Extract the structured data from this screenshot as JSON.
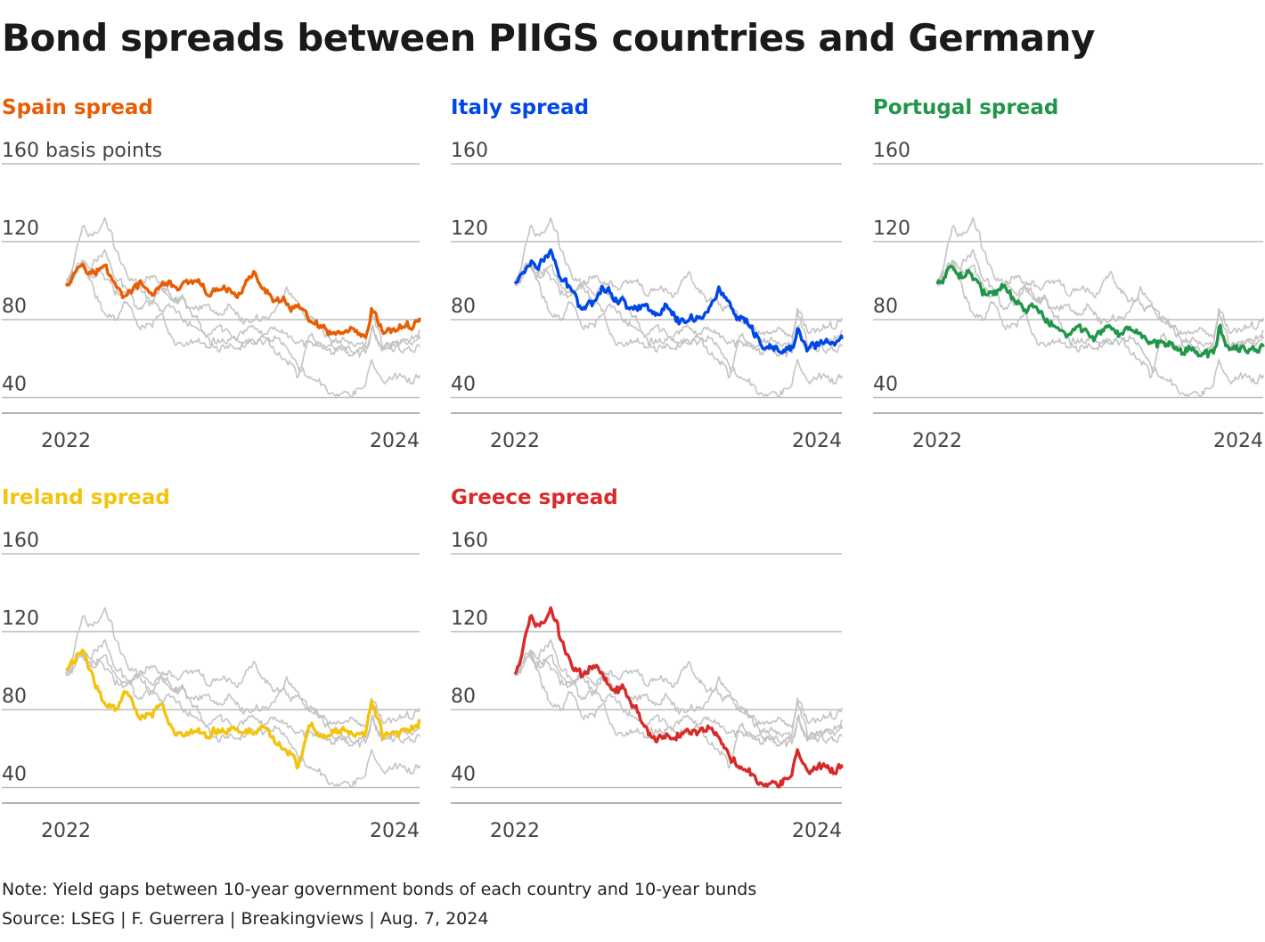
{
  "title": "Bond spreads between PIIGS countries and Germany",
  "note": "Note: Yield gaps between 10-year government bonds of each country and 10-year bunds",
  "source": "Source: LSEG | F. Guerrera | Breakingviews | Aug. 7, 2024",
  "y_unit_label": "basis points",
  "chart_data": {
    "type": "line",
    "layout": "small-multiples",
    "y_ticks": [
      40,
      80,
      120,
      160
    ],
    "ylim": [
      32,
      160
    ],
    "x_ticks": [
      "2022",
      "2024"
    ],
    "xlim": [
      "2022-01-01",
      "2024-08-07"
    ],
    "grid": true,
    "series": [
      {
        "name": "Spain spread",
        "color": "#e85d04",
        "anchors": [
          [
            "2022-01-01",
            99
          ],
          [
            "2022-02-15",
            110
          ],
          [
            "2022-03-15",
            104
          ],
          [
            "2022-04-15",
            107
          ],
          [
            "2022-05-15",
            97
          ],
          [
            "2022-06-15",
            92
          ],
          [
            "2022-07-15",
            98
          ],
          [
            "2022-08-15",
            93
          ],
          [
            "2022-09-15",
            98
          ],
          [
            "2022-10-15",
            97
          ],
          [
            "2022-11-15",
            97
          ],
          [
            "2022-12-15",
            99
          ],
          [
            "2023-01-15",
            92
          ],
          [
            "2023-02-15",
            95
          ],
          [
            "2023-03-15",
            95
          ],
          [
            "2023-04-15",
            94
          ],
          [
            "2023-05-15",
            103
          ],
          [
            "2023-06-15",
            96
          ],
          [
            "2023-07-15",
            90
          ],
          [
            "2023-08-15",
            87
          ],
          [
            "2023-09-15",
            86
          ],
          [
            "2023-10-15",
            80
          ],
          [
            "2023-11-15",
            75
          ],
          [
            "2023-12-15",
            71
          ],
          [
            "2024-01-15",
            73
          ],
          [
            "2024-02-15",
            72
          ],
          [
            "2024-03-15",
            68
          ],
          [
            "2024-04-01",
            84
          ],
          [
            "2024-05-01",
            73
          ],
          [
            "2024-06-15",
            76
          ],
          [
            "2024-07-15",
            76
          ],
          [
            "2024-08-07",
            81
          ]
        ]
      },
      {
        "name": "Italy spread",
        "color": "#0047e8",
        "anchors": [
          [
            "2022-01-01",
            98
          ],
          [
            "2022-02-15",
            110
          ],
          [
            "2022-03-15",
            108
          ],
          [
            "2022-04-15",
            115
          ],
          [
            "2022-05-15",
            100
          ],
          [
            "2022-06-15",
            95
          ],
          [
            "2022-07-15",
            87
          ],
          [
            "2022-08-15",
            90
          ],
          [
            "2022-09-15",
            98
          ],
          [
            "2022-10-15",
            92
          ],
          [
            "2022-11-15",
            88
          ],
          [
            "2022-12-15",
            87
          ],
          [
            "2023-01-15",
            87
          ],
          [
            "2023-02-15",
            84
          ],
          [
            "2023-03-15",
            87
          ],
          [
            "2023-04-15",
            79
          ],
          [
            "2023-05-15",
            80
          ],
          [
            "2023-06-15",
            82
          ],
          [
            "2023-07-15",
            84
          ],
          [
            "2023-08-15",
            96
          ],
          [
            "2023-09-15",
            87
          ],
          [
            "2023-10-15",
            80
          ],
          [
            "2023-11-15",
            74
          ],
          [
            "2023-12-15",
            67
          ],
          [
            "2024-01-15",
            64
          ],
          [
            "2024-02-15",
            64
          ],
          [
            "2024-03-15",
            65
          ],
          [
            "2024-04-01",
            74
          ],
          [
            "2024-05-01",
            65
          ],
          [
            "2024-06-15",
            69
          ],
          [
            "2024-07-15",
            68
          ],
          [
            "2024-08-07",
            70
          ]
        ]
      },
      {
        "name": "Portugal spread",
        "color": "#21964a",
        "anchors": [
          [
            "2022-01-01",
            98
          ],
          [
            "2022-02-15",
            107
          ],
          [
            "2022-03-15",
            104
          ],
          [
            "2022-04-15",
            104
          ],
          [
            "2022-05-15",
            94
          ],
          [
            "2022-06-15",
            92
          ],
          [
            "2022-07-15",
            97
          ],
          [
            "2022-08-15",
            88
          ],
          [
            "2022-09-15",
            86
          ],
          [
            "2022-10-15",
            85
          ],
          [
            "2022-11-15",
            80
          ],
          [
            "2022-12-15",
            74
          ],
          [
            "2023-01-15",
            72
          ],
          [
            "2023-02-15",
            75
          ],
          [
            "2023-03-15",
            73
          ],
          [
            "2023-04-15",
            73
          ],
          [
            "2023-05-15",
            75
          ],
          [
            "2023-06-15",
            68
          ],
          [
            "2023-07-15",
            73
          ],
          [
            "2023-08-15",
            73
          ],
          [
            "2023-09-15",
            68
          ],
          [
            "2023-10-15",
            68
          ],
          [
            "2023-11-15",
            70
          ],
          [
            "2023-12-15",
            64
          ],
          [
            "2024-01-15",
            65
          ],
          [
            "2024-02-15",
            62
          ],
          [
            "2024-03-15",
            62
          ],
          [
            "2024-04-01",
            77
          ],
          [
            "2024-05-01",
            64
          ],
          [
            "2024-06-15",
            63
          ],
          [
            "2024-07-15",
            65
          ],
          [
            "2024-08-07",
            66
          ]
        ]
      },
      {
        "name": "Ireland spread",
        "color": "#f2c40f",
        "anchors": [
          [
            "2022-01-01",
            100
          ],
          [
            "2022-02-15",
            110
          ],
          [
            "2022-03-15",
            97
          ],
          [
            "2022-04-15",
            84
          ],
          [
            "2022-05-15",
            80
          ],
          [
            "2022-06-15",
            90
          ],
          [
            "2022-07-15",
            78
          ],
          [
            "2022-08-15",
            78
          ],
          [
            "2022-09-15",
            86
          ],
          [
            "2022-10-15",
            68
          ],
          [
            "2022-11-15",
            66
          ],
          [
            "2022-12-15",
            68
          ],
          [
            "2023-01-15",
            65
          ],
          [
            "2023-02-15",
            70
          ],
          [
            "2023-03-15",
            70
          ],
          [
            "2023-04-15",
            68
          ],
          [
            "2023-05-15",
            68
          ],
          [
            "2023-06-15",
            72
          ],
          [
            "2023-07-15",
            65
          ],
          [
            "2023-08-15",
            60
          ],
          [
            "2023-09-15",
            50
          ],
          [
            "2023-10-15",
            70
          ],
          [
            "2023-11-15",
            68
          ],
          [
            "2023-12-15",
            68
          ],
          [
            "2024-01-15",
            70
          ],
          [
            "2024-02-15",
            66
          ],
          [
            "2024-03-15",
            68
          ],
          [
            "2024-04-01",
            84
          ],
          [
            "2024-05-01",
            66
          ],
          [
            "2024-06-15",
            69
          ],
          [
            "2024-07-15",
            70
          ],
          [
            "2024-08-07",
            74
          ]
        ]
      },
      {
        "name": "Greece spread",
        "color": "#d92a2a",
        "anchors": [
          [
            "2022-01-01",
            98
          ],
          [
            "2022-02-15",
            126
          ],
          [
            "2022-03-15",
            122
          ],
          [
            "2022-04-15",
            133
          ],
          [
            "2022-05-15",
            115
          ],
          [
            "2022-06-15",
            104
          ],
          [
            "2022-07-15",
            96
          ],
          [
            "2022-08-15",
            104
          ],
          [
            "2022-09-15",
            98
          ],
          [
            "2022-10-15",
            90
          ],
          [
            "2022-11-15",
            92
          ],
          [
            "2022-12-15",
            83
          ],
          [
            "2023-01-15",
            70
          ],
          [
            "2023-02-15",
            64
          ],
          [
            "2023-03-15",
            66
          ],
          [
            "2023-04-15",
            65
          ],
          [
            "2023-05-15",
            70
          ],
          [
            "2023-06-15",
            70
          ],
          [
            "2023-07-15",
            72
          ],
          [
            "2023-08-15",
            66
          ],
          [
            "2023-09-15",
            57
          ],
          [
            "2023-10-15",
            52
          ],
          [
            "2023-11-15",
            48
          ],
          [
            "2023-12-15",
            44
          ],
          [
            "2024-01-15",
            42
          ],
          [
            "2024-02-15",
            45
          ],
          [
            "2024-03-15",
            45
          ],
          [
            "2024-04-01",
            58
          ],
          [
            "2024-05-01",
            45
          ],
          [
            "2024-06-15",
            50
          ],
          [
            "2024-07-15",
            48
          ],
          [
            "2024-08-07",
            50
          ]
        ]
      }
    ]
  }
}
